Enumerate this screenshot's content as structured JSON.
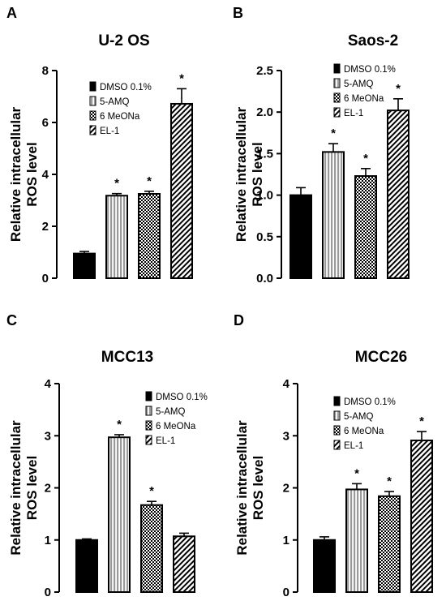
{
  "chart_data": [
    {
      "panel": "A",
      "type": "bar",
      "title": "U-2 OS",
      "ylabel": "Relative intracellular ROS level",
      "xlabel": "",
      "ylim": [
        0,
        8
      ],
      "yticks": [
        "0",
        "2",
        "4",
        "6",
        "8"
      ],
      "categories": [
        "DMSO 0.1%",
        "5-AMQ",
        "6 MeONa",
        "EL-1"
      ],
      "values": [
        0.95,
        3.18,
        3.25,
        6.72
      ],
      "errors": [
        0.08,
        0.08,
        0.1,
        0.58
      ],
      "significance": [
        "",
        "*",
        "*",
        "*"
      ]
    },
    {
      "panel": "B",
      "type": "bar",
      "title": "Saos-2",
      "ylabel": "Relative intracellular ROS level",
      "xlabel": "",
      "ylim": [
        0,
        2.5
      ],
      "yticks": [
        "0.0",
        "0.5",
        "1.0",
        "1.5",
        "2.0",
        "2.5"
      ],
      "categories": [
        "DMSO 0.1%",
        "5-AMQ",
        "6 MeONa",
        "EL-1"
      ],
      "values": [
        1.0,
        1.52,
        1.23,
        2.02
      ],
      "errors": [
        0.09,
        0.1,
        0.09,
        0.14
      ],
      "significance": [
        "",
        "*",
        "*",
        "*"
      ]
    },
    {
      "panel": "C",
      "type": "bar",
      "title": "MCC13",
      "ylabel": "Relative intracellular ROS level",
      "xlabel": "",
      "ylim": [
        0,
        4
      ],
      "yticks": [
        "0",
        "1",
        "2",
        "3",
        "4"
      ],
      "categories": [
        "DMSO 0.1%",
        "5-AMQ",
        "6 MeONa",
        "EL-1"
      ],
      "values": [
        1.0,
        2.97,
        1.67,
        1.07
      ],
      "errors": [
        0.02,
        0.05,
        0.07,
        0.06
      ],
      "significance": [
        "",
        "*",
        "*",
        ""
      ]
    },
    {
      "panel": "D",
      "type": "bar",
      "title": "MCC26",
      "ylabel": "Relative intracellular ROS level",
      "xlabel": "",
      "ylim": [
        0,
        4
      ],
      "yticks": [
        "0",
        "1",
        "2",
        "3",
        "4"
      ],
      "categories": [
        "DMSO 0.1%",
        "5-AMQ",
        "6 MeONa",
        "EL-1"
      ],
      "values": [
        1.0,
        1.97,
        1.84,
        2.91
      ],
      "errors": [
        0.06,
        0.11,
        0.09,
        0.17
      ],
      "significance": [
        "",
        "*",
        "*",
        "*"
      ]
    }
  ],
  "fills": [
    "solid-black",
    "vertical-gray-stripes",
    "checkerboard",
    "diagonal-hatch"
  ],
  "colors": {
    "bar_outline": "#000000",
    "solid": "#000000",
    "stripe_gray": "#9a9a9a",
    "background": "#ffffff"
  }
}
